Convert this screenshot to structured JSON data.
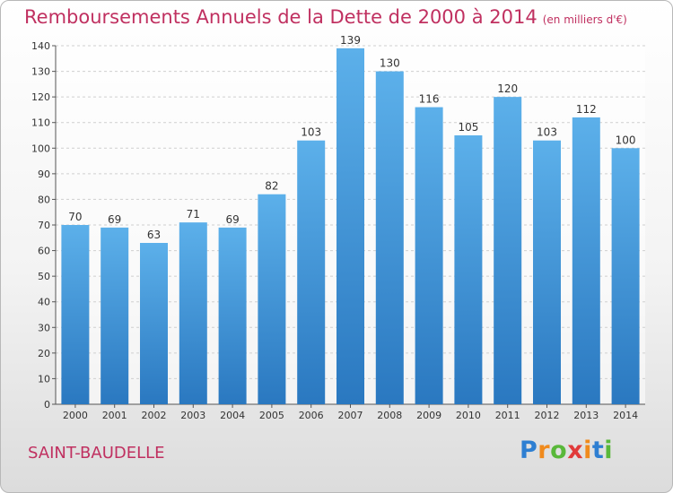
{
  "chart_data": {
    "type": "bar",
    "title": "Remboursements Annuels de la Dette de 2000 à 2014",
    "subtitle": "(en milliers d'€)",
    "categories": [
      "2000",
      "2001",
      "2002",
      "2003",
      "2004",
      "2005",
      "2006",
      "2007",
      "2008",
      "2009",
      "2010",
      "2011",
      "2012",
      "2013",
      "2014"
    ],
    "values": [
      70,
      69,
      63,
      71,
      69,
      82,
      103,
      139,
      130,
      116,
      105,
      120,
      103,
      112,
      100
    ],
    "ylim": [
      0,
      140
    ],
    "yticks": [
      0,
      10,
      20,
      30,
      40,
      50,
      60,
      70,
      80,
      90,
      100,
      110,
      120,
      130,
      140
    ],
    "grid": true,
    "bar_color": "#3f97da"
  },
  "footer": {
    "commune": "SAINT-BAUDELLE",
    "logo_letters": [
      "P",
      "r",
      "o",
      "x",
      "i",
      "t",
      "i"
    ],
    "logo_colors": [
      "#2e7fd2",
      "#f08a1c",
      "#59b83a",
      "#e13a3a",
      "#f08a1c",
      "#2e7fd2",
      "#59b83a"
    ]
  }
}
